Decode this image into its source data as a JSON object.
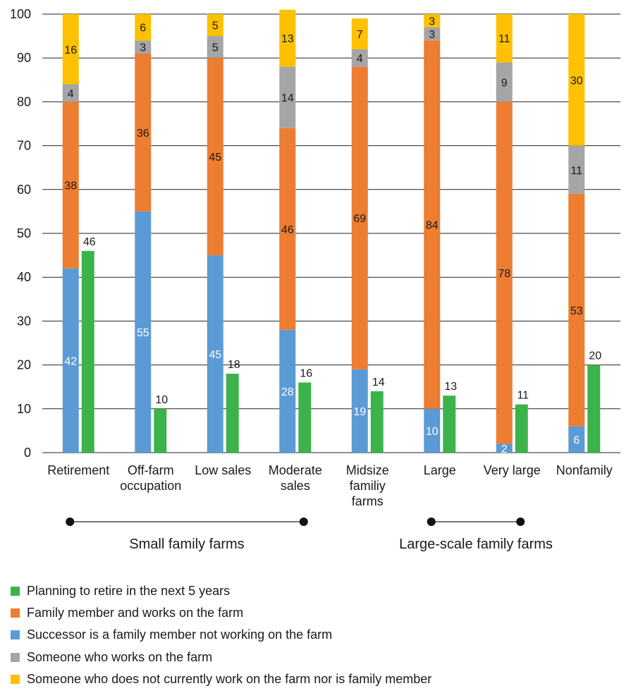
{
  "chart_data": {
    "type": "bar",
    "stacked_with_side_bar": true,
    "ylim": [
      0,
      100
    ],
    "yticks": [
      0,
      10,
      20,
      30,
      40,
      50,
      60,
      70,
      80,
      90,
      100
    ],
    "categories": [
      [
        "Retirement"
      ],
      [
        "Off-farm",
        "occupation"
      ],
      [
        "Low sales"
      ],
      [
        "Moderate",
        "sales"
      ],
      [
        "Midsize",
        "familiy",
        "farms"
      ],
      [
        "Large"
      ],
      [
        "Very large"
      ],
      [
        "Nonfamily"
      ]
    ],
    "stack_series": [
      {
        "name": "Successor is a family member not working on the farm",
        "color": "#5b9bd5",
        "label_color": "#ffffff",
        "values": [
          42,
          55,
          45,
          28,
          19,
          10,
          2,
          6
        ]
      },
      {
        "name": "Family member and works on the farm",
        "color": "#ed7d31",
        "label_color": "#1a1a1a",
        "values": [
          38,
          36,
          45,
          46,
          69,
          84,
          78,
          53
        ]
      },
      {
        "name": "Someone who works on the farm",
        "color": "#a5a5a5",
        "label_color": "#1a1a1a",
        "values": [
          4,
          3,
          5,
          14,
          4,
          3,
          9,
          11
        ]
      },
      {
        "name": "Someone who does not currently work on the farm nor is family member",
        "color": "#ffc000",
        "label_color": "#1a1a1a",
        "values": [
          16,
          6,
          5,
          13,
          7,
          3,
          11,
          30
        ]
      }
    ],
    "side_series": {
      "name": "Planning to retire in the next 5 years",
      "color": "#3cb34a",
      "values": [
        46,
        10,
        18,
        16,
        14,
        13,
        11,
        20
      ]
    },
    "groups": [
      {
        "label": "Small family farms",
        "from": 0,
        "to": 3
      },
      {
        "label": "Large-scale family farms",
        "from": 5,
        "to": 6
      }
    ],
    "legend": {
      "placement": "bottom-left",
      "items": [
        {
          "name": "Planning to retire in the next 5 years",
          "color": "#3cb34a"
        },
        {
          "name": "Family member and works on the farm",
          "color": "#ed7d31"
        },
        {
          "name": "Successor is a family member not working on the farm",
          "color": "#5b9bd5"
        },
        {
          "name": "Someone who works on the farm",
          "color": "#a5a5a5"
        },
        {
          "name": "Someone who does not currently work on the farm nor is family member",
          "color": "#ffc000"
        }
      ]
    }
  }
}
